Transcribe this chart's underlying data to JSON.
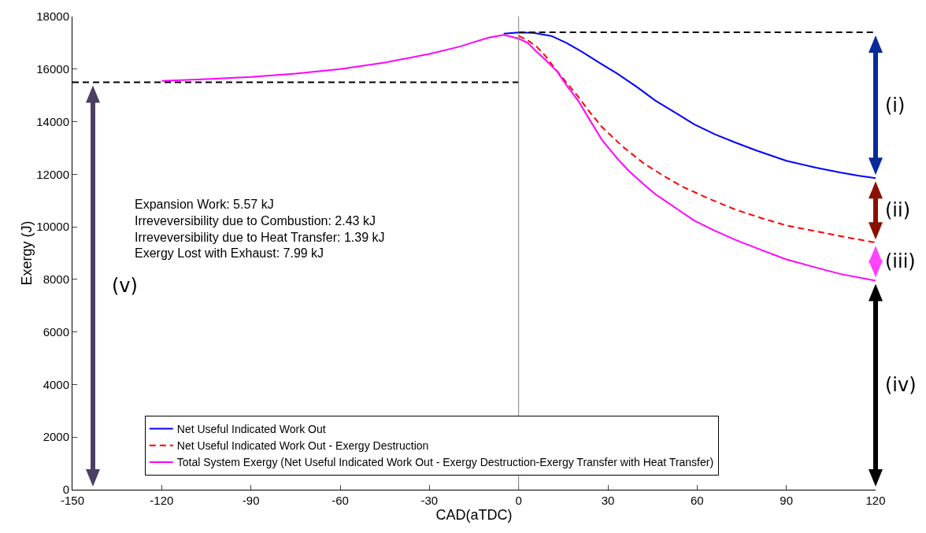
{
  "chart_data": {
    "type": "line",
    "xlabel": "CAD(aTDC)",
    "ylabel": "Exergy (J)",
    "xlim": [
      -150,
      120
    ],
    "xticks": [
      -150,
      -120,
      -90,
      -60,
      -30,
      0,
      30,
      60,
      90,
      120
    ],
    "ylim": [
      0,
      18000
    ],
    "yticks": [
      0,
      2000,
      4000,
      6000,
      8000,
      10000,
      12000,
      14000,
      16000,
      18000
    ],
    "grid": false,
    "legend": "bottom",
    "marker": "none",
    "series": [
      {
        "name": "Net Useful Indicated Work Out",
        "color": "#0000ff",
        "line_style": "solid",
        "x": [
          -5,
          0,
          5,
          11,
          16,
          21,
          27,
          33,
          40,
          46,
          53,
          59,
          66,
          73,
          80,
          90,
          100,
          108,
          114,
          120
        ],
        "values": [
          17350,
          17390,
          17380,
          17260,
          17000,
          16680,
          16250,
          15840,
          15300,
          14800,
          14320,
          13900,
          13520,
          13200,
          12900,
          12510,
          12250,
          12070,
          11950,
          11850
        ]
      },
      {
        "name": "Net Useful Indicated Work Out - Exergy Destruction",
        "color": "#ff0000",
        "line_style": "dashed",
        "x": [
          0,
          3,
          6,
          9,
          12,
          16,
          20,
          24,
          28,
          35,
          42,
          49,
          55,
          64,
          73,
          82,
          90,
          100,
          108,
          120
        ],
        "values": [
          17260,
          17100,
          16860,
          16500,
          16050,
          15500,
          14950,
          14350,
          13800,
          13050,
          12420,
          11920,
          11530,
          11070,
          10650,
          10320,
          10050,
          9830,
          9650,
          9400
        ]
      },
      {
        "name": "Total System Exergy (Net Useful Indicated Work Out - Exergy Destruction-Exergy Transfer with Heat Transfer)",
        "color": "#ff00ff",
        "line_style": "solid",
        "x": [
          -120,
          -105,
          -90,
          -75,
          -60,
          -45,
          -30,
          -20,
          -15,
          -10,
          -5,
          0,
          3,
          6,
          9,
          13,
          16,
          20,
          24,
          28,
          33,
          37,
          42,
          46,
          53,
          59,
          66,
          73,
          82,
          90,
          100,
          108,
          120
        ],
        "values": [
          15550,
          15620,
          15700,
          15830,
          16000,
          16250,
          16580,
          16850,
          17030,
          17200,
          17300,
          17160,
          17000,
          16670,
          16350,
          15900,
          15400,
          14800,
          14050,
          13310,
          12620,
          12130,
          11620,
          11240,
          10700,
          10240,
          9850,
          9500,
          9100,
          8760,
          8450,
          8210,
          7950
        ]
      },
      {
        "color": "#000000",
        "line_style": "dashed",
        "x": [
          -150,
          0
        ],
        "values": [
          15500,
          15500
        ]
      },
      {
        "color": "#000000",
        "line_style": "dashed",
        "x": [
          0,
          120
        ],
        "values": [
          17400,
          17400
        ]
      }
    ],
    "ref_lines": [
      {
        "axis": "x",
        "value": 0,
        "color": "#808080"
      }
    ],
    "annotations": [
      "Expansion Work: 5.57 kJ",
      "Irreveversibility due to Combustion: 2.43 kJ",
      "Irreveversibility due to Heat Transfer: 1.39 kJ",
      "Exergy Lost with Exhaust: 7.99 kJ",
      "(i)",
      "(ii)",
      "(iii)",
      "(iv)",
      "(v)"
    ]
  }
}
